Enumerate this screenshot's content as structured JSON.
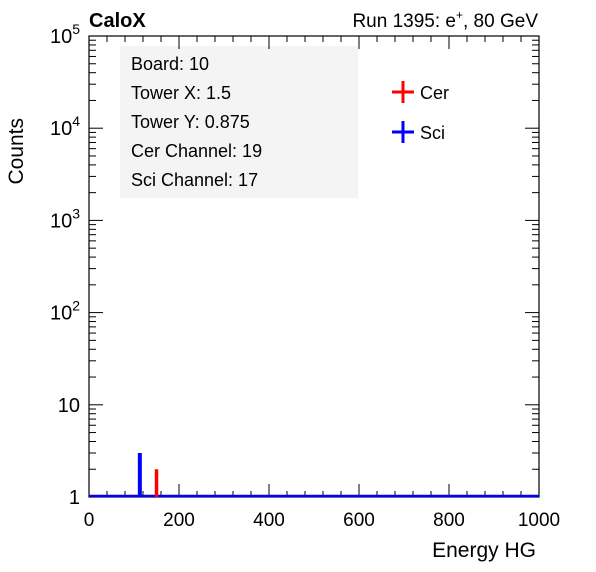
{
  "header": {
    "left_label": "CaloX",
    "run_text": "Run 1395: e",
    "run_sup": "+",
    "run_tail": ", 80 GeV"
  },
  "info_box": {
    "lines": [
      "Board: 10",
      "Tower X: 1.5",
      "Tower Y: 0.875",
      "Cer Channel: 19",
      "Sci Channel: 17"
    ]
  },
  "chart_data": {
    "type": "histogram",
    "xlabel": "Energy HG",
    "ylabel": "Counts",
    "xlim": [
      0,
      1000
    ],
    "ylim": [
      1,
      100000
    ],
    "yscale": "log",
    "x_ticks": [
      "0",
      "200",
      "400",
      "600",
      "800",
      "1000"
    ],
    "y_ticks": [
      {
        "value": 1,
        "base": "1",
        "exp": ""
      },
      {
        "value": 10,
        "base": "10",
        "exp": ""
      },
      {
        "value": 100,
        "base": "10",
        "exp": "2"
      },
      {
        "value": 1000,
        "base": "10",
        "exp": "3"
      },
      {
        "value": 10000,
        "base": "10",
        "exp": "4"
      },
      {
        "value": 100000,
        "base": "10",
        "exp": "5"
      }
    ],
    "legend_position": "top-right",
    "series": [
      {
        "name": "Cer",
        "color": "#ff0000",
        "bins": [
          {
            "x": 150,
            "count": 2
          }
        ]
      },
      {
        "name": "Sci",
        "color": "#0000ff",
        "bins": [
          {
            "x": 113,
            "count": 3
          }
        ]
      }
    ]
  }
}
